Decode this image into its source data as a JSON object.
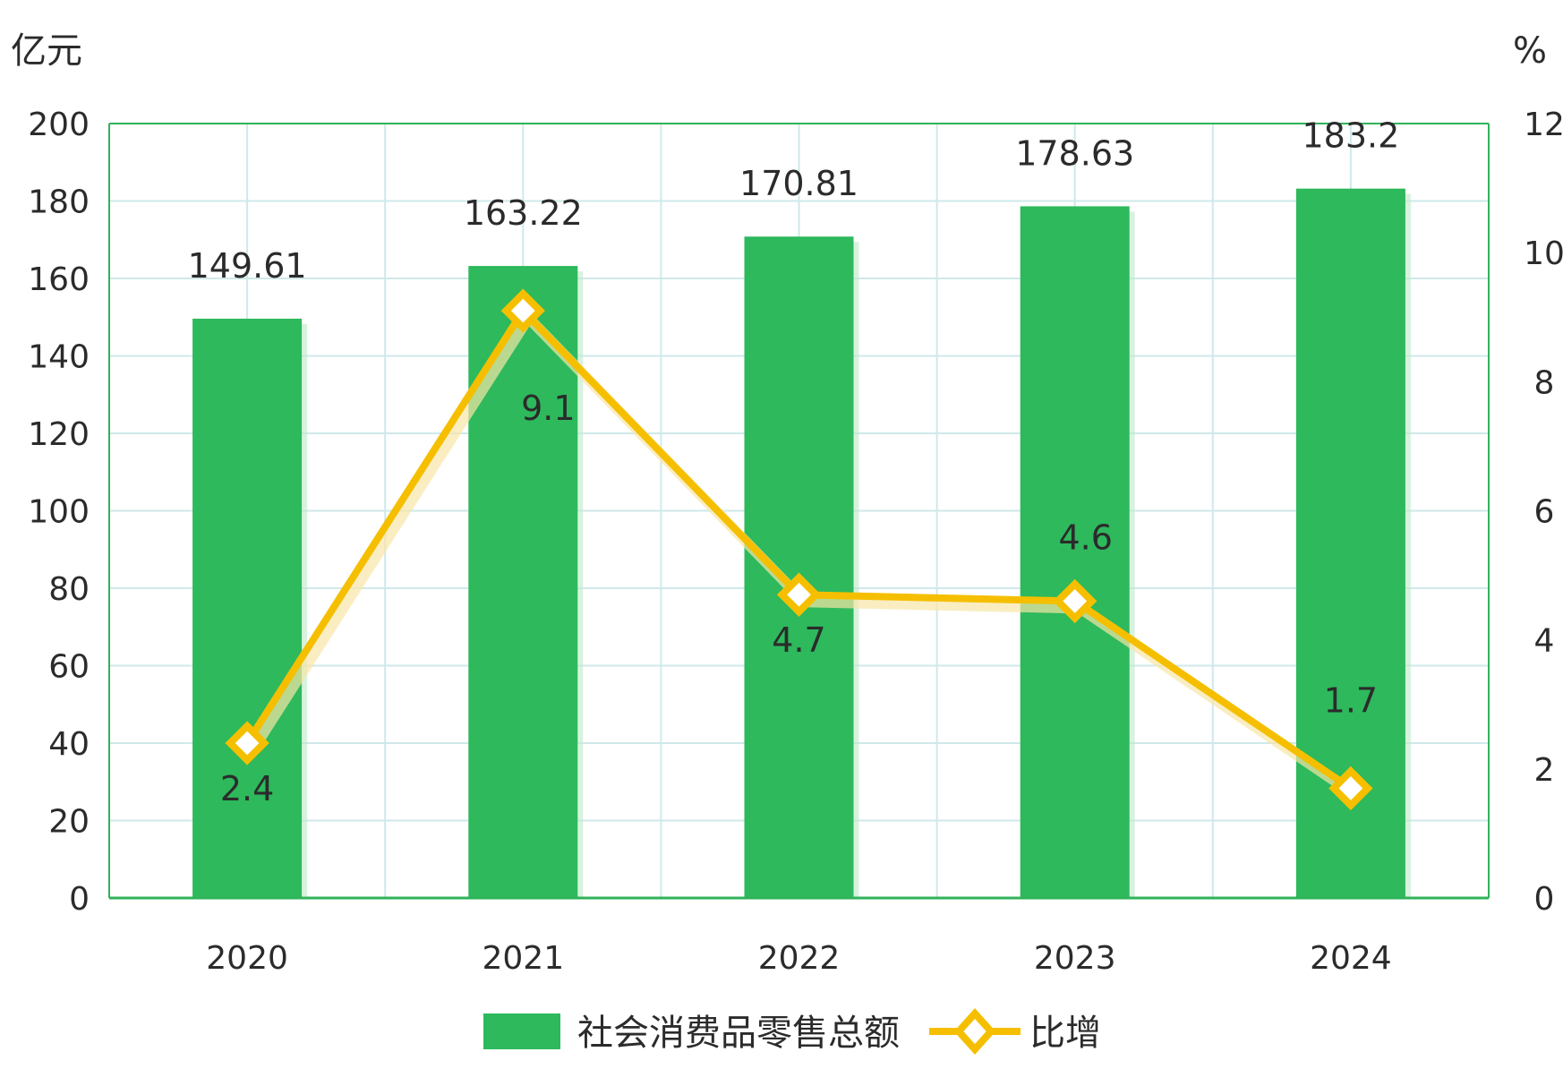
{
  "chart_data": {
    "type": "bar",
    "categories": [
      "2020",
      "2021",
      "2022",
      "2023",
      "2024"
    ],
    "series": [
      {
        "name": "社会消费品零售总额",
        "type": "bar",
        "axis": "left",
        "color": "#2db95c",
        "values": [
          149.61,
          163.22,
          170.81,
          178.63,
          183.2
        ],
        "labels": [
          "149.61",
          "163.22",
          "170.81",
          "178.63",
          "183.2"
        ]
      },
      {
        "name": "比增",
        "type": "line",
        "axis": "right",
        "color": "#f5bf00",
        "values": [
          2.4,
          9.1,
          4.7,
          4.6,
          1.7
        ],
        "labels": [
          "2.4",
          "9.1",
          "4.7",
          "4.6",
          "1.7"
        ],
        "label_position": [
          "below",
          "below-right",
          "below",
          "above-right",
          "above"
        ]
      }
    ],
    "y_left": {
      "unit": "亿元",
      "range": [
        0,
        200
      ],
      "ticks": [
        "0",
        "20",
        "40",
        "60",
        "80",
        "100",
        "120",
        "140",
        "160",
        "180",
        "200"
      ]
    },
    "y_right": {
      "unit": "%",
      "range": [
        0,
        12
      ],
      "ticks": [
        "0",
        "2",
        "4",
        "6",
        "8",
        "10",
        "12"
      ]
    },
    "grid": true,
    "legend_position": "bottom-center",
    "grid_color": "#cfe9ea",
    "frame_color": "#2fb35a"
  }
}
